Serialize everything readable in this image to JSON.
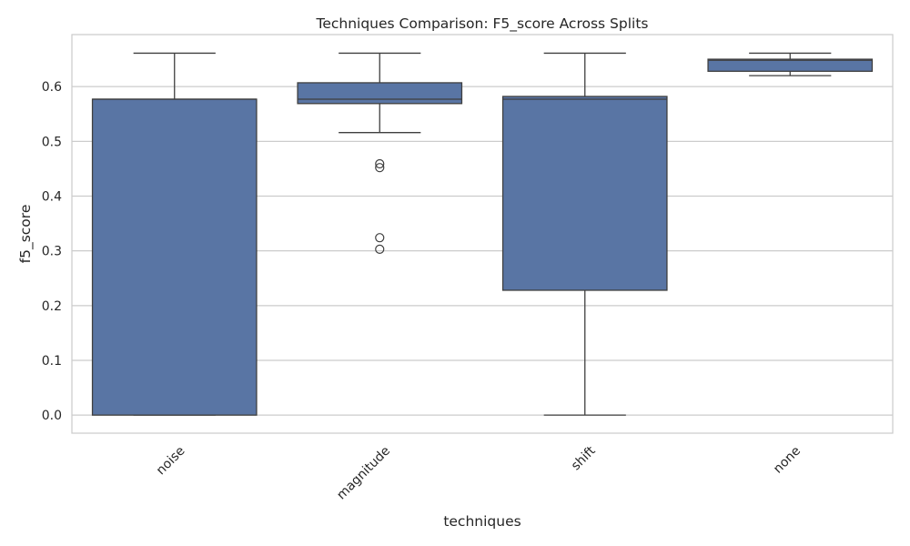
{
  "chart_data": {
    "type": "box",
    "title": "Techniques Comparison: F5_score Across Splits",
    "xlabel": "techniques",
    "ylabel": "f5_score",
    "categories": [
      "noise",
      "magnitude",
      "shift",
      "none"
    ],
    "ylim": [
      -0.033,
      0.695
    ],
    "yticks": [
      0.0,
      0.1,
      0.2,
      0.3,
      0.4,
      0.5,
      0.6
    ],
    "ytick_labels": [
      "0.0",
      "0.1",
      "0.2",
      "0.3",
      "0.4",
      "0.5",
      "0.6"
    ],
    "grid": true,
    "legend": "none",
    "boxes": [
      {
        "category": "noise",
        "whisker_low": 0.0,
        "q1": 0.0,
        "median": 0.577,
        "q3": 0.577,
        "whisker_high": 0.661,
        "outliers": []
      },
      {
        "category": "magnitude",
        "whisker_low": 0.516,
        "q1": 0.569,
        "median": 0.577,
        "q3": 0.607,
        "whisker_high": 0.661,
        "outliers": [
          0.459,
          0.452,
          0.324,
          0.303
        ]
      },
      {
        "category": "shift",
        "whisker_low": 0.0,
        "q1": 0.228,
        "median": 0.577,
        "q3": 0.582,
        "whisker_high": 0.661,
        "outliers": []
      },
      {
        "category": "none",
        "whisker_low": 0.62,
        "q1": 0.628,
        "median": 0.648,
        "q3": 0.65,
        "whisker_high": 0.661,
        "outliers": []
      }
    ],
    "colors": {
      "box_fill": "#5975a4",
      "line": "#3f3f3f",
      "grid": "#cccccc",
      "frame": "#cccccc",
      "background": "#ffffff"
    }
  }
}
